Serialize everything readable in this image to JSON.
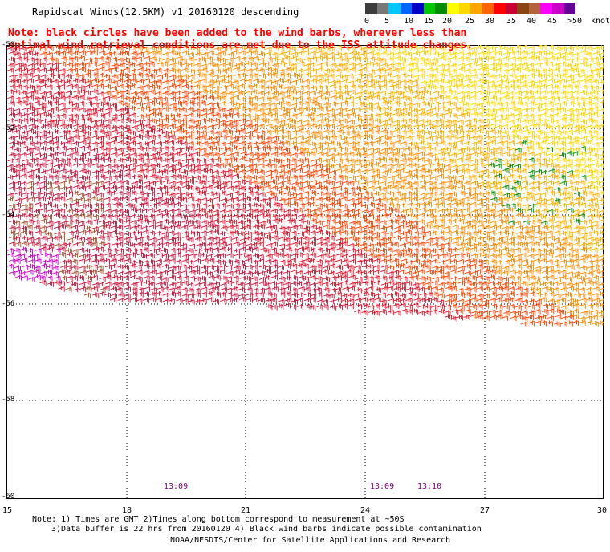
{
  "title": "Rapidscat Winds(12.5KM) v1 20160120 descending",
  "note": {
    "line1": "Note: black circles have been added to the wind barbs, wherever less than",
    "line2": "optimal wind retrieval conditions are met due to the ISS attitude changes."
  },
  "legend": {
    "labels": [
      "0",
      "5",
      "10",
      "15",
      "20",
      "25",
      "30",
      "35",
      "40",
      "45",
      ">50"
    ],
    "units": "knots",
    "colors": [
      "#3c3c3c",
      "#787878",
      "#00c8ff",
      "#0064ff",
      "#0000c8",
      "#00c800",
      "#008c00",
      "#ffff00",
      "#ffd700",
      "#ffa500",
      "#ff6400",
      "#ff0000",
      "#c80032",
      "#8b4513",
      "#b4643c",
      "#ff00ff",
      "#c800c8",
      "#640096"
    ]
  },
  "map": {
    "lat_labels": [
      "-50",
      "-52",
      "-54",
      "-56",
      "-58",
      "-60"
    ],
    "lon_labels": [
      "15",
      "18",
      "21",
      "24",
      "27",
      "30"
    ],
    "times": [
      "13:09",
      "13:09",
      "13:10"
    ]
  },
  "footnote": {
    "line1": "Note: 1) Times are GMT 2)Times along bottom correspond to measurement at ~50S",
    "line2": "3)Data buffer is 22 hrs from 20160120 4) Black wind barbs indicate possible contamination"
  },
  "credit": "NOAA/NESDIS/Center for Satellite Applications and Research"
}
